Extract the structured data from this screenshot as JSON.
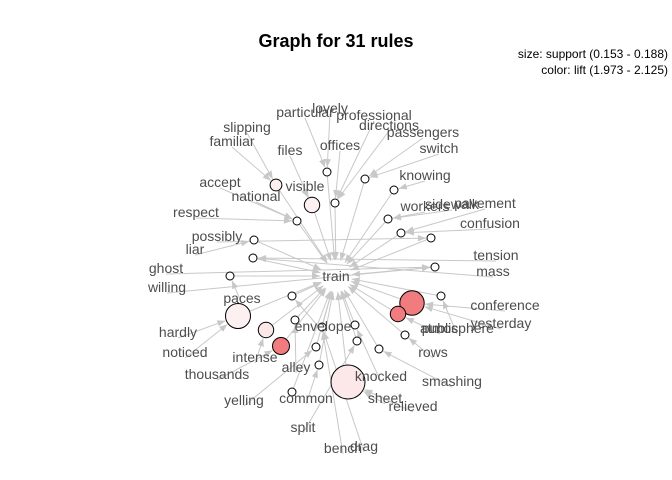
{
  "title": "Graph for 31 rules",
  "legend": {
    "size": "size: support (0.153 - 0.188)",
    "color": "color: lift (1.973 - 2.125)"
  },
  "center_item": "train",
  "colors": {
    "edge": "#c8c8c8",
    "node_low_lift": "#ffffff",
    "node_high_lift": "#f07c80"
  },
  "antecedent_items": [
    {
      "label": "slipping",
      "rule": 2
    },
    {
      "label": "familiar",
      "rule": 2
    },
    {
      "label": "particular",
      "rule": 0
    },
    {
      "label": "lovely",
      "rule": 0
    },
    {
      "label": "professional",
      "rule": 1
    },
    {
      "label": "directions",
      "rule": 1
    },
    {
      "label": "passengers",
      "rule": 3
    },
    {
      "label": "switch",
      "rule": 3
    },
    {
      "label": "offices",
      "rule": 1
    },
    {
      "label": "files",
      "rule": 4
    },
    {
      "label": "visible",
      "rule": 4
    },
    {
      "label": "accept",
      "rule": 5
    },
    {
      "label": "national",
      "rule": 5
    },
    {
      "label": "knowing",
      "rule": 6
    },
    {
      "label": "respect",
      "rule": 5
    },
    {
      "label": "workers",
      "rule": 7
    },
    {
      "label": "sidewalk",
      "rule": 7
    },
    {
      "label": "pavement",
      "rule": 8
    },
    {
      "label": "confusion",
      "rule": 8
    },
    {
      "label": "possibly",
      "rule": 9
    },
    {
      "label": "liar",
      "rule": 10
    },
    {
      "label": "tension",
      "rule": 11
    },
    {
      "label": "mass",
      "rule": 11
    },
    {
      "label": "ghost",
      "rule": 12
    },
    {
      "label": "willing",
      "rule": 12
    },
    {
      "label": "paces",
      "rule": 13
    },
    {
      "label": "conference",
      "rule": 14
    },
    {
      "label": "yesterday",
      "rule": 14
    },
    {
      "label": "hardly",
      "rule": 15
    },
    {
      "label": "noticed",
      "rule": 15
    },
    {
      "label": "public",
      "rule": 16
    },
    {
      "label": "atmosphere",
      "rule": 17
    },
    {
      "label": "envelope",
      "rule": 18
    },
    {
      "label": "intense",
      "rule": 19
    },
    {
      "label": "thousands",
      "rule": 20
    },
    {
      "label": "alley",
      "rule": 21
    },
    {
      "label": "rows",
      "rule": 22
    },
    {
      "label": "knocked",
      "rule": 23
    },
    {
      "label": "smashing",
      "rule": 24
    },
    {
      "label": "yelling",
      "rule": 25
    },
    {
      "label": "common",
      "rule": 26
    },
    {
      "label": "sheet",
      "rule": 27
    },
    {
      "label": "relieved",
      "rule": 27
    },
    {
      "label": "split",
      "rule": 28
    },
    {
      "label": "bench",
      "rule": 29
    },
    {
      "label": "drag",
      "rule": 29
    }
  ],
  "rules": [
    {
      "support": 0.153,
      "lift": 1.973
    },
    {
      "support": 0.153,
      "lift": 1.973
    },
    {
      "support": 0.158,
      "lift": 1.99
    },
    {
      "support": 0.153,
      "lift": 1.973
    },
    {
      "support": 0.163,
      "lift": 1.99
    },
    {
      "support": 0.153,
      "lift": 1.973
    },
    {
      "support": 0.153,
      "lift": 1.973
    },
    {
      "support": 0.153,
      "lift": 1.973
    },
    {
      "support": 0.153,
      "lift": 1.973
    },
    {
      "support": 0.153,
      "lift": 1.973
    },
    {
      "support": 0.153,
      "lift": 1.973
    },
    {
      "support": 0.153,
      "lift": 1.973
    },
    {
      "support": 0.153,
      "lift": 1.973
    },
    {
      "support": 0.153,
      "lift": 1.973
    },
    {
      "support": 0.175,
      "lift": 2.125
    },
    {
      "support": 0.176,
      "lift": 1.99
    },
    {
      "support": 0.163,
      "lift": 2.125
    },
    {
      "support": 0.153,
      "lift": 1.973
    },
    {
      "support": 0.153,
      "lift": 1.973
    },
    {
      "support": 0.163,
      "lift": 2.0
    },
    {
      "support": 0.165,
      "lift": 2.125
    },
    {
      "support": 0.153,
      "lift": 1.973
    },
    {
      "support": 0.153,
      "lift": 1.973
    },
    {
      "support": 0.153,
      "lift": 1.973
    },
    {
      "support": 0.153,
      "lift": 1.973
    },
    {
      "support": 0.153,
      "lift": 1.973
    },
    {
      "support": 0.153,
      "lift": 1.973
    },
    {
      "support": 0.188,
      "lift": 2.0
    },
    {
      "support": 0.153,
      "lift": 1.973
    },
    {
      "support": 0.153,
      "lift": 1.973
    },
    {
      "support": 0.153,
      "lift": 1.973
    }
  ]
}
